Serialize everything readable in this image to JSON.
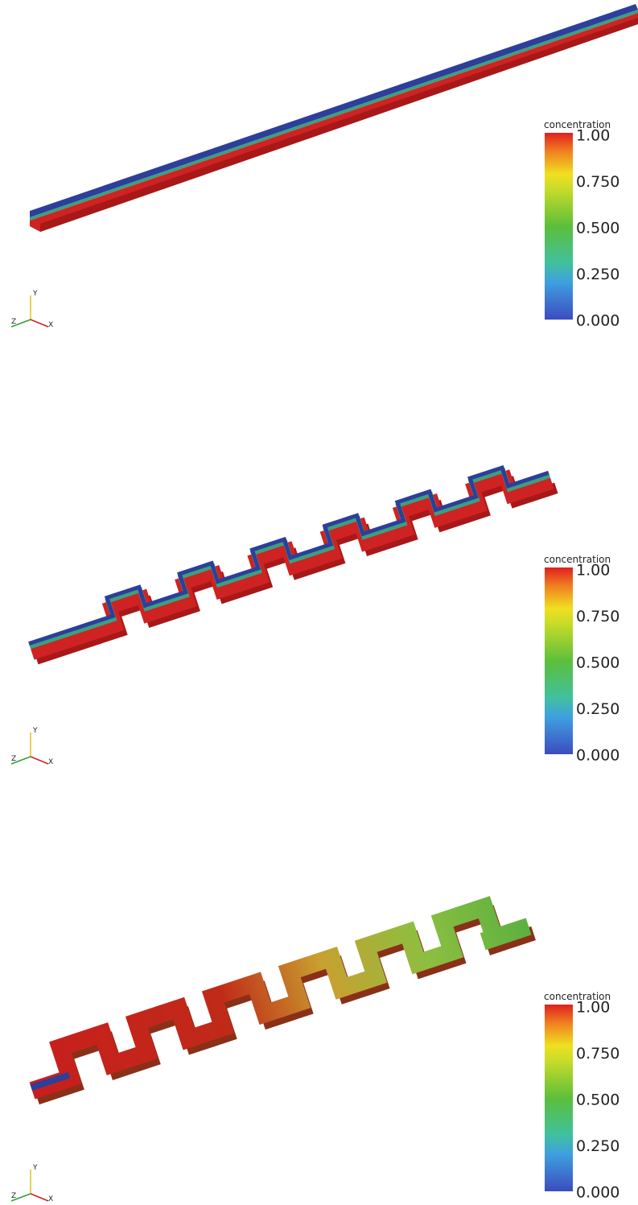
{
  "panels": [
    {
      "colorbar": {
        "title": "concentration",
        "tick_labels": [
          "1.00",
          "0.750",
          "0.500",
          "0.250",
          "0.000"
        ]
      },
      "axes": {
        "x": "X",
        "y": "Y",
        "z": "Z"
      }
    },
    {
      "colorbar": {
        "title": "concentration",
        "tick_labels": [
          "1.00",
          "0.750",
          "0.500",
          "0.250",
          "0.000"
        ]
      },
      "axes": {
        "x": "X",
        "y": "Y",
        "z": "Z"
      }
    },
    {
      "colorbar": {
        "title": "concentration",
        "tick_labels": [
          "1.00",
          "0.750",
          "0.500",
          "0.250",
          "0.000"
        ]
      },
      "axes": {
        "x": "X",
        "y": "Y",
        "z": "Z"
      }
    }
  ]
}
